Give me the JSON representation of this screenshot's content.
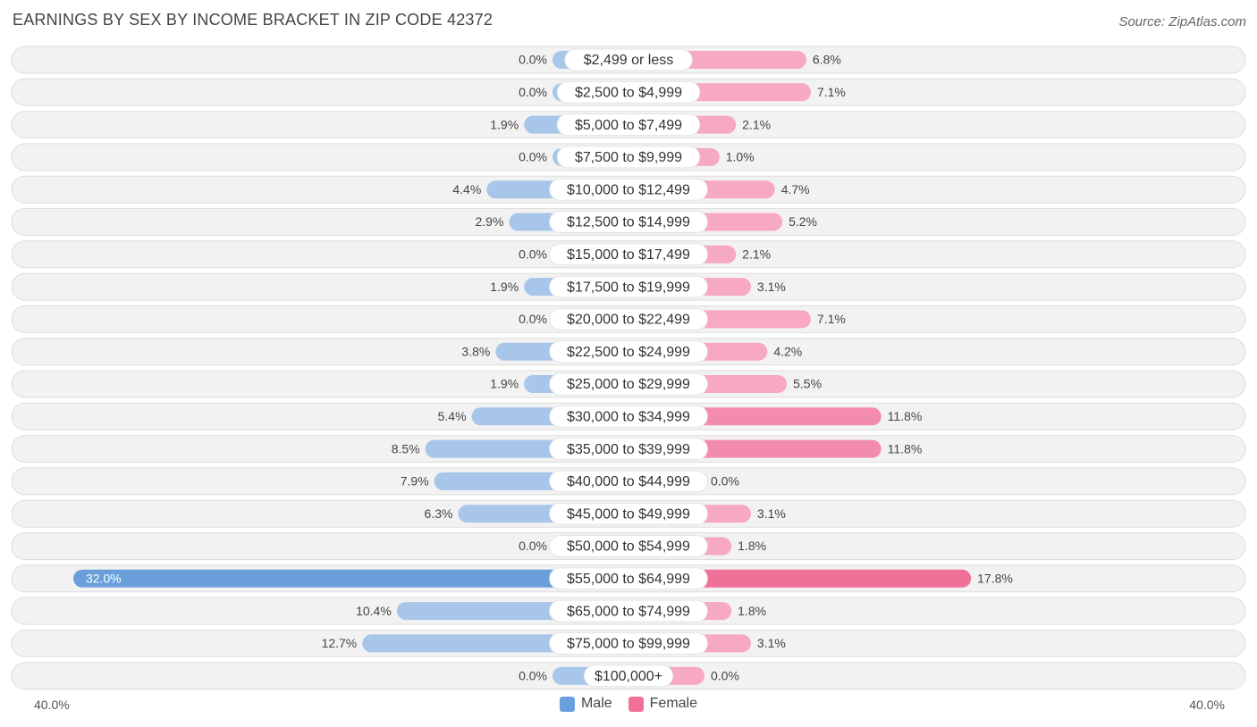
{
  "title": "EARNINGS BY SEX BY INCOME BRACKET IN ZIP CODE 42372",
  "source": "Source: ZipAtlas.com",
  "axis": {
    "left_label": "40.0%",
    "right_label": "40.0%"
  },
  "colors": {
    "male": "#a8c6ea",
    "male_strong": "#6a9fdb",
    "female": "#f7a8c2",
    "female_strong": "#f07098",
    "row_bg": "#f2f2f2",
    "row_border": "#dddddd"
  },
  "legend": [
    {
      "label": "Male",
      "color": "#6a9fdb"
    },
    {
      "label": "Female",
      "color": "#f07098"
    }
  ],
  "chart_data": {
    "type": "bar",
    "orientation": "horizontal-diverging",
    "title": "EARNINGS BY SEX BY INCOME BRACKET IN ZIP CODE 42372",
    "xlim": [
      -40,
      40
    ],
    "categories": [
      "$2,499 or less",
      "$2,500 to $4,999",
      "$5,000 to $7,499",
      "$7,500 to $9,999",
      "$10,000 to $12,499",
      "$12,500 to $14,999",
      "$15,000 to $17,499",
      "$17,500 to $19,999",
      "$20,000 to $22,499",
      "$22,500 to $24,999",
      "$25,000 to $29,999",
      "$30,000 to $34,999",
      "$35,000 to $39,999",
      "$40,000 to $44,999",
      "$45,000 to $49,999",
      "$50,000 to $54,999",
      "$55,000 to $64,999",
      "$65,000 to $74,999",
      "$75,000 to $99,999",
      "$100,000+"
    ],
    "series": [
      {
        "name": "Male",
        "values": [
          0.0,
          0.0,
          1.9,
          0.0,
          4.4,
          2.9,
          0.0,
          1.9,
          0.0,
          3.8,
          1.9,
          5.4,
          8.5,
          7.9,
          6.3,
          0.0,
          32.0,
          10.4,
          12.7,
          0.0
        ],
        "labels": [
          "0.0%",
          "0.0%",
          "1.9%",
          "0.0%",
          "4.4%",
          "2.9%",
          "0.0%",
          "1.9%",
          "0.0%",
          "3.8%",
          "1.9%",
          "5.4%",
          "8.5%",
          "7.9%",
          "6.3%",
          "0.0%",
          "32.0%",
          "10.4%",
          "12.7%",
          "0.0%"
        ]
      },
      {
        "name": "Female",
        "values": [
          6.8,
          7.1,
          2.1,
          1.0,
          4.7,
          5.2,
          2.1,
          3.1,
          7.1,
          4.2,
          5.5,
          11.8,
          11.8,
          0.0,
          3.1,
          1.8,
          17.8,
          1.8,
          3.1,
          0.0
        ],
        "labels": [
          "6.8%",
          "7.1%",
          "2.1%",
          "1.0%",
          "4.7%",
          "5.2%",
          "2.1%",
          "3.1%",
          "7.1%",
          "4.2%",
          "5.5%",
          "11.8%",
          "11.8%",
          "0.0%",
          "3.1%",
          "1.8%",
          "17.8%",
          "1.8%",
          "3.1%",
          "0.0%"
        ]
      }
    ]
  }
}
